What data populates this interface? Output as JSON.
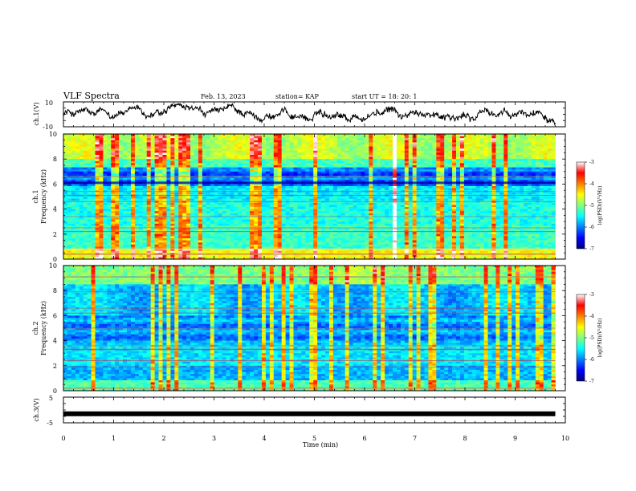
{
  "header": {
    "title": "VLF Spectra",
    "date": "Feb. 13, 2023",
    "station": "station= KAP",
    "start": "start  UT  =   18: 20: 1"
  },
  "chart_data": [
    {
      "type": "line",
      "panel": "ch1-waveform",
      "ylabel": "ch.1(V)",
      "ylim": [
        -10,
        10
      ],
      "y_ticks": [
        "10",
        "-10"
      ],
      "xlim": [
        0,
        10
      ],
      "x_end": 9.8,
      "trace_color": "#000000",
      "approx_level": 0,
      "approx_amplitude": 6
    },
    {
      "type": "heatmap",
      "panel": "ch1-spectrogram",
      "ylabel_line1": "ch.1",
      "ylabel_line2": "Frequency (kHz)",
      "ylim": [
        0,
        10
      ],
      "y_ticks": [
        "0",
        "2",
        "4",
        "6",
        "8",
        "10"
      ],
      "xlim": [
        0,
        10
      ],
      "x_end": 9.8,
      "colorbar": {
        "label": "log(PSD)(V²/Hz)",
        "range": [
          -7,
          -3
        ],
        "ticks": [
          "-3",
          "-4",
          "-5",
          "-6",
          "-7"
        ]
      }
    },
    {
      "type": "heatmap",
      "panel": "ch2-spectrogram",
      "ylabel_line1": "ch.2",
      "ylabel_line2": "Frequency (kHz)",
      "ylim": [
        0,
        10
      ],
      "y_ticks": [
        "0",
        "2",
        "4",
        "6",
        "8",
        "10"
      ],
      "xlim": [
        0,
        10
      ],
      "x_end": 9.8,
      "colorbar": {
        "label": "log(PSD)(V²/Hz)",
        "range": [
          -7,
          -3
        ],
        "ticks": [
          "-3",
          "-4",
          "-5",
          "-6",
          "-7"
        ]
      }
    },
    {
      "type": "line",
      "panel": "ch3-waveform",
      "ylabel": "ch.3(V)",
      "ylim": [
        -5,
        5
      ],
      "y_ticks": [
        "5",
        "-5"
      ],
      "xlim": [
        0,
        10
      ],
      "x_end": 9.8,
      "trace_color": "#000000",
      "approx_level": -1.5
    }
  ],
  "x_axis": {
    "label": "Time  (min)",
    "ticks": [
      "0",
      "1",
      "2",
      "3",
      "4",
      "5",
      "6",
      "7",
      "8",
      "9",
      "10"
    ]
  }
}
